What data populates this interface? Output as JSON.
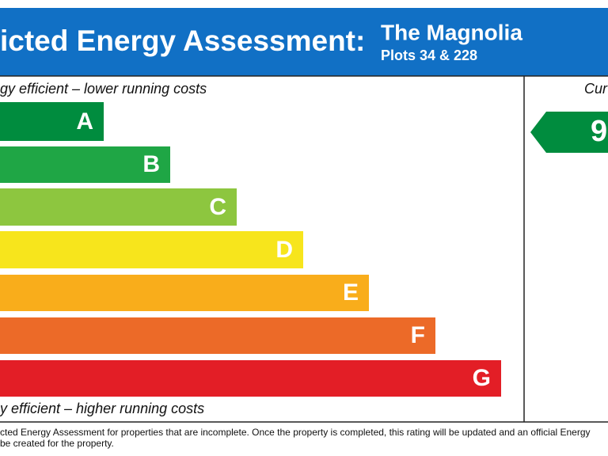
{
  "header": {
    "title": "icted Energy Assessment:",
    "development": "The Magnolia",
    "plots": "Plots 34 & 228"
  },
  "scale": {
    "top_label": "gy efficient – lower running costs",
    "bands": [
      "A",
      "B",
      "C",
      "D",
      "E",
      "F",
      "G"
    ],
    "bottom_label": "y efficient – higher running costs"
  },
  "current": {
    "heading": "Cur",
    "rating": "9"
  },
  "footer": {
    "lines": [
      "cted Energy Assessment for properties that are incomplete. Once the property is completed, this rating will be updated and an official Energy",
      "be created for the property."
    ]
  }
}
